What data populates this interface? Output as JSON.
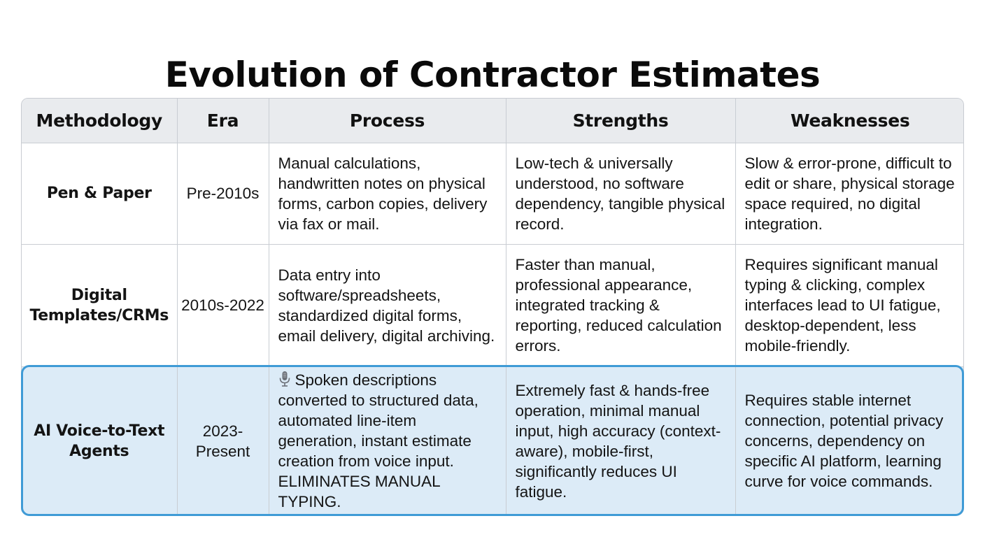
{
  "title": "Evolution of Contractor Estimates",
  "table": {
    "headers": [
      "Methodology",
      "Era",
      "Process",
      "Strengths",
      "Weaknesses"
    ],
    "rows": [
      {
        "methodology": "Pen & Paper",
        "era": "Pre-2010s",
        "process": "Manual calculations, handwritten notes on physical forms, carbon copies, delivery via fax or mail.",
        "strengths": "Low-tech & universally understood, no software dependency, tangible physical record.",
        "weaknesses": "Slow & error-prone, difficult to edit or share, physical storage space required, no digital integration."
      },
      {
        "methodology": "Digital Templates/CRMs",
        "era": "2010s-2022",
        "process": "Data entry into software/spreadsheets, standardized digital forms, email delivery, digital archiving.",
        "strengths": "Faster than manual, professional appearance, integrated tracking & reporting, reduced calculation errors.",
        "weaknesses": "Requires significant manual typing & clicking, complex interfaces lead to UI fatigue, desktop-dependent, less mobile-friendly."
      },
      {
        "methodology": "AI Voice-to-Text Agents",
        "era": "2023-Present",
        "process_icon": "microphone-icon",
        "process": "Spoken descriptions converted to structured data, automated line-item generation, instant estimate creation from voice input. ELIMINATES MANUAL TYPING.",
        "strengths": "Extremely fast & hands-free operation, minimal manual input, high accuracy (context-aware), mobile-first, significantly reduces UI fatigue.",
        "weaknesses": "Requires stable internet connection, potential privacy concerns, dependency on specific AI platform, learning curve for voice commands."
      }
    ]
  },
  "colors": {
    "header_bg": "#e9ebee",
    "grid_lines": "#c9cdd3",
    "highlight_bg": "#dcebf7",
    "highlight_border": "#3f9bd6"
  }
}
